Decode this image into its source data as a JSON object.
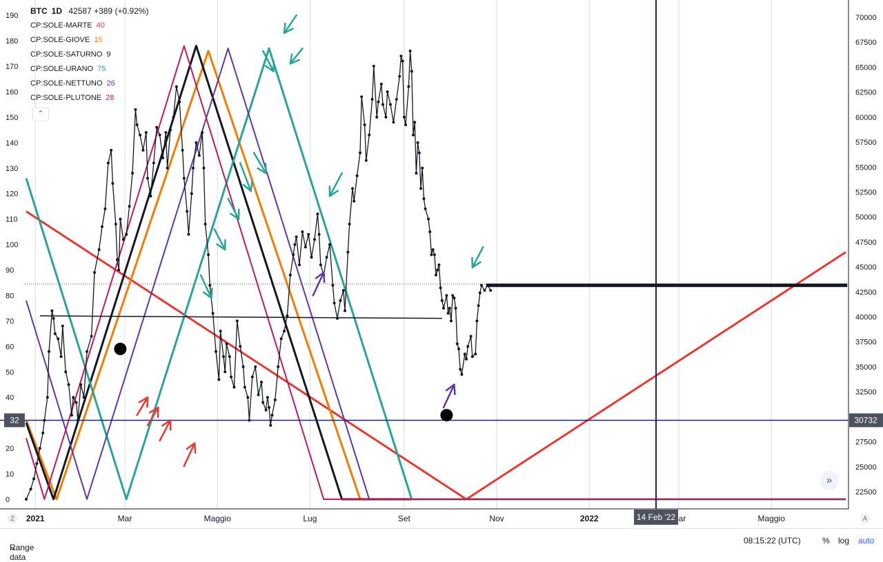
{
  "header": {
    "symbol": "BTC",
    "interval": "1D",
    "price": "42587",
    "change": "+389 (+0.92%)"
  },
  "legend": [
    {
      "label": "CP:SOLE-MARTE",
      "value": "40",
      "color": "#e53935"
    },
    {
      "label": "CP:SOLE-GIOVE",
      "value": "15",
      "color": "#f57c00"
    },
    {
      "label": "CP:SOLE-SATURNO",
      "value": "9",
      "color": "#131722"
    },
    {
      "label": "CP:SOLE-URANO",
      "value": "75",
      "color": "#26a69a"
    },
    {
      "label": "CP:SOLE-NETTUNO",
      "value": "26",
      "color": "#5e35b1"
    },
    {
      "label": "CP:SOLE-PLUTONE",
      "value": "28",
      "color": "#c2185b"
    }
  ],
  "chart_data": {
    "type": "line",
    "left_axis": {
      "range": [
        -3.8,
        196
      ],
      "ticks": [
        0,
        10,
        20,
        30,
        40,
        50,
        60,
        70,
        80,
        90,
        100,
        110,
        120,
        130,
        140,
        150,
        160,
        170,
        180,
        190
      ],
      "marker": "32"
    },
    "right_axis": {
      "ticks": [
        "70000",
        "67500",
        "65000",
        "62500",
        "60000",
        "57500",
        "55000",
        "52500",
        "50000",
        "47500",
        "45000",
        "42500",
        "40000",
        "37500",
        "35000",
        "32500",
        "30000",
        "27500",
        "25000",
        "22500"
      ],
      "marker": "30732"
    },
    "x_axis": {
      "labels": [
        {
          "label": "2021",
          "day": 6,
          "bold": true
        },
        {
          "label": "Mar",
          "day": 65
        },
        {
          "label": "Maggio",
          "day": 126
        },
        {
          "label": "Lug",
          "day": 187
        },
        {
          "label": "Set",
          "day": 249
        },
        {
          "label": "Nov",
          "day": 310
        },
        {
          "label": "2022",
          "day": 371,
          "bold": true
        },
        {
          "label": "Mar",
          "day": 430
        },
        {
          "label": "Maggio",
          "day": 491
        }
      ],
      "crosshair_label": "14 Feb '22",
      "crosshair_day": 415
    },
    "oscillators": [
      {
        "name": "CP:SOLE-MARTE",
        "color": "#e53935",
        "points": [
          [
            0,
            113
          ],
          [
            290,
            0
          ],
          [
            540,
            97
          ]
        ]
      },
      {
        "name": "CP:SOLE-GIOVE",
        "color": "#f57c00",
        "points": [
          [
            0,
            31
          ],
          [
            20,
            0
          ],
          [
            120,
            176
          ],
          [
            220,
            0
          ],
          [
            540,
            0
          ]
        ]
      },
      {
        "name": "CP:SOLE-SATURNO",
        "color": "#131722",
        "points": [
          [
            0,
            30
          ],
          [
            18,
            0
          ],
          [
            112,
            178
          ],
          [
            208,
            0
          ],
          [
            540,
            0
          ]
        ]
      },
      {
        "name": "CP:SOLE-URANO",
        "color": "#26a69a",
        "points": [
          [
            0,
            126
          ],
          [
            66,
            0
          ],
          [
            160,
            177
          ],
          [
            254,
            0
          ],
          [
            540,
            0
          ]
        ]
      },
      {
        "name": "CP:SOLE-NETTUNO",
        "color": "#5e35b1",
        "points": [
          [
            0,
            78
          ],
          [
            40,
            0
          ],
          [
            133,
            177
          ],
          [
            226,
            0
          ],
          [
            540,
            0
          ]
        ]
      },
      {
        "name": "CP:SOLE-PLUTONE",
        "color": "#c2185b",
        "points": [
          [
            0,
            24
          ],
          [
            12,
            0
          ],
          [
            104,
            178
          ],
          [
            196,
            0
          ],
          [
            540,
            0
          ]
        ]
      }
    ],
    "price_series": [
      [
        0,
        0
      ],
      [
        3,
        4
      ],
      [
        5,
        8
      ],
      [
        7,
        14
      ],
      [
        9,
        20
      ],
      [
        11,
        26
      ],
      [
        12,
        31
      ],
      [
        14,
        40
      ],
      [
        15,
        58
      ],
      [
        17,
        74
      ],
      [
        18,
        71
      ],
      [
        19,
        65
      ],
      [
        21,
        63
      ],
      [
        23,
        56
      ],
      [
        24,
        68
      ],
      [
        26,
        50
      ],
      [
        28,
        45
      ],
      [
        30,
        33
      ],
      [
        31,
        40
      ],
      [
        33,
        38
      ],
      [
        34,
        31
      ],
      [
        36,
        45
      ],
      [
        38,
        40
      ],
      [
        40,
        58
      ],
      [
        43,
        64
      ],
      [
        45,
        89
      ],
      [
        48,
        98
      ],
      [
        50,
        107
      ],
      [
        52,
        114
      ],
      [
        54,
        132
      ],
      [
        56,
        137
      ],
      [
        57,
        124
      ],
      [
        59,
        108
      ],
      [
        60,
        94
      ],
      [
        61,
        90
      ],
      [
        62,
        110
      ],
      [
        64,
        102
      ],
      [
        66,
        104
      ],
      [
        68,
        115
      ],
      [
        70,
        128
      ],
      [
        72,
        153
      ],
      [
        73,
        147
      ],
      [
        75,
        143
      ],
      [
        77,
        137
      ],
      [
        79,
        144
      ],
      [
        80,
        126
      ],
      [
        82,
        119
      ],
      [
        84,
        132
      ],
      [
        86,
        146
      ],
      [
        88,
        143
      ],
      [
        90,
        134
      ],
      [
        92,
        144
      ],
      [
        93,
        130
      ],
      [
        95,
        145
      ],
      [
        97,
        150
      ],
      [
        99,
        162
      ],
      [
        101,
        156
      ],
      [
        103,
        137
      ],
      [
        104,
        126
      ],
      [
        106,
        113
      ],
      [
        107,
        104
      ],
      [
        109,
        120
      ],
      [
        110,
        130
      ],
      [
        112,
        140
      ],
      [
        114,
        135
      ],
      [
        116,
        144
      ],
      [
        117,
        130
      ],
      [
        118,
        108
      ],
      [
        120,
        96
      ],
      [
        121,
        84
      ],
      [
        123,
        73
      ],
      [
        125,
        58
      ],
      [
        127,
        47
      ],
      [
        128,
        66
      ],
      [
        130,
        56
      ],
      [
        131,
        50
      ],
      [
        132,
        61
      ],
      [
        134,
        56
      ],
      [
        135,
        48
      ],
      [
        137,
        44
      ],
      [
        139,
        70
      ],
      [
        141,
        60
      ],
      [
        143,
        52
      ],
      [
        144,
        44
      ],
      [
        146,
        40
      ],
      [
        147,
        31
      ],
      [
        149,
        48
      ],
      [
        151,
        52
      ],
      [
        153,
        41
      ],
      [
        155,
        46
      ],
      [
        156,
        38
      ],
      [
        158,
        35
      ],
      [
        159,
        40
      ],
      [
        160,
        36
      ],
      [
        161,
        29
      ],
      [
        162,
        33
      ],
      [
        164,
        39
      ],
      [
        166,
        52
      ],
      [
        168,
        63
      ],
      [
        170,
        66
      ],
      [
        172,
        72
      ],
      [
        174,
        88
      ],
      [
        176,
        96
      ],
      [
        177,
        100
      ],
      [
        178,
        103
      ],
      [
        180,
        92
      ],
      [
        182,
        105
      ],
      [
        184,
        99
      ],
      [
        186,
        104
      ],
      [
        188,
        95
      ],
      [
        190,
        102
      ],
      [
        192,
        112
      ],
      [
        193,
        104
      ],
      [
        194,
        92
      ],
      [
        196,
        88
      ],
      [
        198,
        95
      ],
      [
        200,
        100
      ],
      [
        202,
        84
      ],
      [
        203,
        77
      ],
      [
        205,
        71
      ],
      [
        207,
        78
      ],
      [
        209,
        82
      ],
      [
        210,
        74
      ],
      [
        212,
        97
      ],
      [
        213,
        108
      ],
      [
        215,
        122
      ],
      [
        216,
        117
      ],
      [
        218,
        127
      ],
      [
        220,
        136
      ],
      [
        221,
        158
      ],
      [
        223,
        147
      ],
      [
        224,
        133
      ],
      [
        226,
        143
      ],
      [
        228,
        157
      ],
      [
        229,
        170
      ],
      [
        231,
        150
      ],
      [
        232,
        156
      ],
      [
        234,
        163
      ],
      [
        235,
        155
      ],
      [
        237,
        150
      ],
      [
        238,
        160
      ],
      [
        240,
        155
      ],
      [
        242,
        148
      ],
      [
        244,
        157
      ],
      [
        246,
        166
      ],
      [
        247,
        174
      ],
      [
        248,
        172
      ],
      [
        249,
        150
      ],
      [
        250,
        147
      ],
      [
        252,
        162
      ],
      [
        253,
        176
      ],
      [
        254,
        168
      ],
      [
        255,
        143
      ],
      [
        256,
        148
      ],
      [
        257,
        128
      ],
      [
        258,
        140
      ],
      [
        259,
        136
      ],
      [
        260,
        122
      ],
      [
        261,
        130
      ],
      [
        262,
        118
      ],
      [
        263,
        114
      ],
      [
        265,
        110
      ],
      [
        266,
        105
      ],
      [
        267,
        96
      ],
      [
        268,
        98
      ],
      [
        269,
        96
      ],
      [
        270,
        88
      ],
      [
        271,
        90
      ],
      [
        272,
        92
      ],
      [
        273,
        83
      ],
      [
        274,
        78
      ],
      [
        275,
        75
      ],
      [
        277,
        80
      ],
      [
        278,
        73
      ],
      [
        279,
        75
      ],
      [
        280,
        70
      ],
      [
        281,
        80
      ],
      [
        282,
        79
      ],
      [
        283,
        75
      ],
      [
        284,
        61
      ],
      [
        285,
        59
      ],
      [
        286,
        51
      ],
      [
        287,
        49
      ],
      [
        289,
        57
      ],
      [
        290,
        55
      ],
      [
        291,
        60
      ],
      [
        293,
        64
      ],
      [
        294,
        56
      ],
      [
        296,
        57
      ],
      [
        297,
        70
      ],
      [
        298,
        76
      ],
      [
        299,
        81
      ],
      [
        300,
        84
      ],
      [
        302,
        82
      ],
      [
        304,
        84
      ],
      [
        306,
        82
      ]
    ],
    "support_line": {
      "points": [
        [
          9,
          72
        ],
        [
          274,
          71
        ]
      ],
      "color": "#131722"
    },
    "horizontal_blue": {
      "value": 31,
      "color": "#1a237e"
    },
    "dotted_level": {
      "value": 84.5
    },
    "thick_level": {
      "from_day": 303,
      "to_day": 541,
      "value": 84,
      "color": "#131722"
    },
    "pivot_points": [
      {
        "day": 62,
        "value": 59
      },
      {
        "day": 277,
        "value": 33
      }
    ],
    "annotations": [
      {
        "kind": "arrow",
        "color": "#26a69a",
        "from": [
          115,
          88
        ],
        "to": [
          122,
          79
        ]
      },
      {
        "kind": "arrow",
        "color": "#26a69a",
        "from": [
          124,
          106
        ],
        "to": [
          131,
          98
        ]
      },
      {
        "kind": "arrow",
        "color": "#26a69a",
        "from": [
          133,
          118
        ],
        "to": [
          140,
          110
        ]
      },
      {
        "kind": "arrow",
        "color": "#26a69a",
        "from": [
          141,
          132
        ],
        "to": [
          148,
          121
        ]
      },
      {
        "kind": "arrow",
        "color": "#26a69a",
        "from": [
          150,
          136
        ],
        "to": [
          158,
          128
        ]
      },
      {
        "kind": "arrow",
        "color": "#26a69a",
        "from": [
          156,
          176
        ],
        "to": [
          163,
          168
        ]
      },
      {
        "kind": "arrow",
        "color": "#26a69a",
        "from": [
          178,
          190
        ],
        "to": [
          170,
          183
        ]
      },
      {
        "kind": "arrow",
        "color": "#26a69a",
        "from": [
          182,
          177
        ],
        "to": [
          174,
          171
        ]
      },
      {
        "kind": "arrow",
        "color": "#26a69a",
        "from": [
          208,
          128
        ],
        "to": [
          200,
          119
        ]
      },
      {
        "kind": "arrow",
        "color": "#26a69a",
        "from": [
          301,
          99
        ],
        "to": [
          294,
          91
        ]
      },
      {
        "kind": "arrow",
        "color": "#e53935",
        "from": [
          73,
          33
        ],
        "to": [
          80,
          40
        ]
      },
      {
        "kind": "arrow",
        "color": "#e53935",
        "from": [
          80,
          29
        ],
        "to": [
          87,
          36
        ]
      },
      {
        "kind": "arrow",
        "color": "#e53935",
        "from": [
          88,
          23
        ],
        "to": [
          95,
          31
        ]
      },
      {
        "kind": "arrow",
        "color": "#e53935",
        "from": [
          104,
          13
        ],
        "to": [
          111,
          22
        ]
      },
      {
        "kind": "arrow",
        "color": "#5e35b1",
        "from": [
          189,
          80
        ],
        "to": [
          196,
          89
        ]
      },
      {
        "kind": "arrow",
        "color": "#5e35b1",
        "from": [
          275,
          36
        ],
        "to": [
          282,
          45
        ]
      }
    ]
  },
  "footer": {
    "range": "Range data",
    "time": "08:15:22 (UTC)",
    "percent": "%",
    "log": "log",
    "auto": "auto"
  }
}
